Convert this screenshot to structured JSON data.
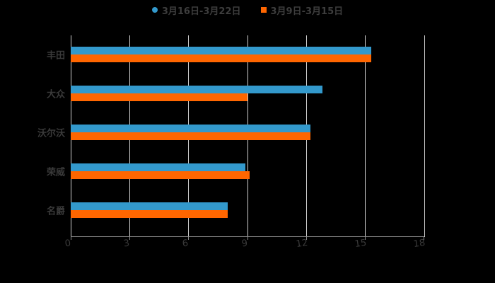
{
  "legend": [
    {
      "label": "3月16日-3月22日",
      "color": "#3399cc",
      "shape": "circle"
    },
    {
      "label": "3月9日-3月15日",
      "color": "#ff6600",
      "shape": "square"
    }
  ],
  "chart_data": {
    "type": "bar",
    "orientation": "horizontal",
    "title": "",
    "xlabel": "",
    "ylabel": "",
    "categories": [
      "丰田",
      "大众",
      "沃尔沃",
      "荣威",
      "名爵"
    ],
    "series": [
      {
        "name": "3月16日-3月22日",
        "color": "#3399cc",
        "values": [
          15.3,
          12.8,
          12.2,
          8.9,
          8.0
        ]
      },
      {
        "name": "3月9日-3月15日",
        "color": "#ff6600",
        "values": [
          15.3,
          9.0,
          12.2,
          9.1,
          8.0
        ]
      }
    ],
    "xlim": [
      0,
      18
    ],
    "xticks": [
      "0",
      "3",
      "6",
      "9",
      "12",
      "15",
      "18"
    ],
    "grid": true,
    "legend_position": "top"
  }
}
